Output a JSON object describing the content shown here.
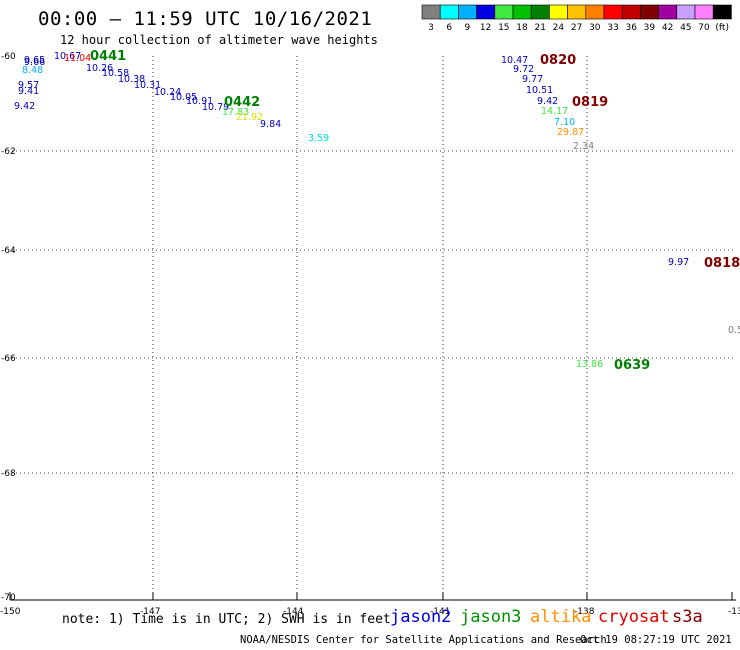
{
  "title": "00:00 – 11:59 UTC 10/16/2021",
  "subtitle": "12 hour collection of altimeter wave heights",
  "legend": {
    "colors": [
      "#808080",
      "#00ffff",
      "#00b0ff",
      "#0000e0",
      "#40e840",
      "#00c000",
      "#008000",
      "#ffff00",
      "#ffc000",
      "#ff8000",
      "#ff0000",
      "#c00000",
      "#800000",
      "#a000a0",
      "#c8a0ff",
      "#ff80ff",
      "#000000"
    ],
    "labels": [
      "3",
      "6",
      "9",
      "12",
      "15",
      "18",
      "21",
      "24",
      "27",
      "30",
      "33",
      "36",
      "39",
      "42",
      "45",
      "70",
      "(ft)"
    ]
  },
  "axes": {
    "lat_labels": [
      "-60",
      "-62",
      "-64",
      "-66",
      "-68",
      "-70"
    ],
    "lon_labels": [
      "-150",
      "-147",
      "-144",
      "-141",
      "-138",
      "-13"
    ]
  },
  "observations": [
    {
      "t": "9.65",
      "c": "#0000c0"
    },
    {
      "t": "9.66",
      "c": "#0000c0"
    },
    {
      "t": "8.48",
      "c": "#00b0ff"
    },
    {
      "t": "9.57",
      "c": "#0000c0"
    },
    {
      "t": "9.41",
      "c": "#0000c0"
    },
    {
      "t": "9.42",
      "c": "#0000c0"
    },
    {
      "t": "10.67",
      "c": "#0000c0"
    },
    {
      "t": "11.04",
      "c": "#ff0000"
    },
    {
      "t": "10.26",
      "c": "#0000c0"
    },
    {
      "t": "10.58",
      "c": "#0000c0"
    },
    {
      "t": "10.38",
      "c": "#0000c0"
    },
    {
      "t": "10.31",
      "c": "#0000c0"
    },
    {
      "t": "10.24",
      "c": "#0000c0"
    },
    {
      "t": "10.05",
      "c": "#0000c0"
    },
    {
      "t": "10.91",
      "c": "#0000c0"
    },
    {
      "t": "10.79",
      "c": "#0000c0"
    },
    {
      "t": "17.83",
      "c": "#40e840"
    },
    {
      "t": "21.92",
      "c": "#e0e000"
    },
    {
      "t": "9.84",
      "c": "#0000c0"
    },
    {
      "t": "3.59",
      "c": "#00e0e0"
    },
    {
      "t": "10.47",
      "c": "#0000c0"
    },
    {
      "t": "9.72",
      "c": "#0000c0"
    },
    {
      "t": "9.77",
      "c": "#0000c0"
    },
    {
      "t": "10.51",
      "c": "#0000c0"
    },
    {
      "t": "9.42",
      "c": "#0000c0"
    },
    {
      "t": "14.17",
      "c": "#40e840"
    },
    {
      "t": "7.10",
      "c": "#00b0ff"
    },
    {
      "t": "29.87",
      "c": "#ff9000"
    },
    {
      "t": "2.34",
      "c": "#808080"
    },
    {
      "t": "9.97",
      "c": "#0000c0"
    },
    {
      "t": "0.5",
      "c": "#808080"
    },
    {
      "t": "13.86",
      "c": "#40e840"
    }
  ],
  "pass_labels": [
    {
      "t": "0441",
      "c": "#008000"
    },
    {
      "t": "0442",
      "c": "#008000"
    },
    {
      "t": "0820",
      "c": "#800000"
    },
    {
      "t": "0819",
      "c": "#800000"
    },
    {
      "t": "0818",
      "c": "#800000"
    },
    {
      "t": "0639",
      "c": "#008000"
    }
  ],
  "note": "note: 1) Time is in UTC; 2) SWH is in feet",
  "satellites": [
    {
      "name": "jason2",
      "color": "#0000e0"
    },
    {
      "name": "jason3",
      "color": "#009000"
    },
    {
      "name": "altika",
      "color": "#ff9000"
    },
    {
      "name": "cryosat",
      "color": "#e00000"
    },
    {
      "name": "s3a",
      "color": "#800000"
    }
  ],
  "credit": "NOAA/NESDIS Center for Satellite Applications and Research",
  "timestamp": "Oct 19 08:27:19 UTC 2021"
}
